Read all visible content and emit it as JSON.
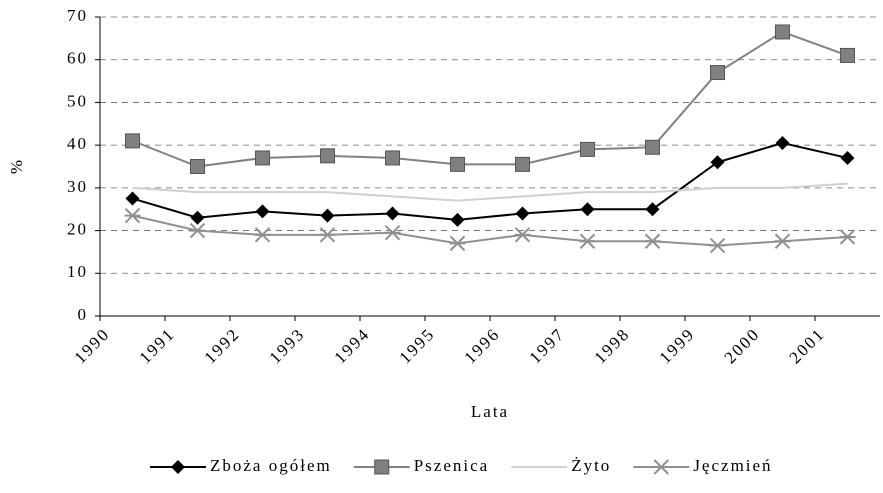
{
  "chart_data": {
    "type": "line",
    "categories": [
      "1990",
      "1991",
      "1992",
      "1993",
      "1994",
      "1995",
      "1996",
      "1997",
      "1998",
      "1999",
      "2000",
      "2001"
    ],
    "series": [
      {
        "name": "Zboża ogółem",
        "color": "#000000",
        "marker": "diamond",
        "values": [
          27.5,
          23,
          24.5,
          23.5,
          24,
          22.5,
          24,
          25,
          25,
          36,
          40.5,
          37
        ]
      },
      {
        "name": "Pszenica",
        "color": "#808080",
        "marker": "square",
        "values": [
          41,
          35,
          37,
          37.5,
          37,
          35.5,
          35.5,
          39,
          39.5,
          57,
          66.5,
          61
        ]
      },
      {
        "name": "Żyto",
        "color": "#d0d0d0",
        "marker": "none",
        "values": [
          30,
          29,
          29,
          29,
          28,
          27,
          28,
          29,
          29,
          30,
          30,
          31
        ]
      },
      {
        "name": "Jęczmień",
        "color": "#909090",
        "marker": "star",
        "values": [
          23.5,
          20,
          19,
          19,
          19.5,
          17,
          19,
          17.5,
          17.5,
          16.5,
          17.5,
          18.5
        ]
      }
    ],
    "ylabel": "%",
    "xlabel": "Lata",
    "ylim": [
      0,
      70
    ],
    "yticks": [
      0,
      10,
      20,
      30,
      40,
      50,
      60,
      70
    ],
    "grid": true,
    "legend": "bottom"
  }
}
